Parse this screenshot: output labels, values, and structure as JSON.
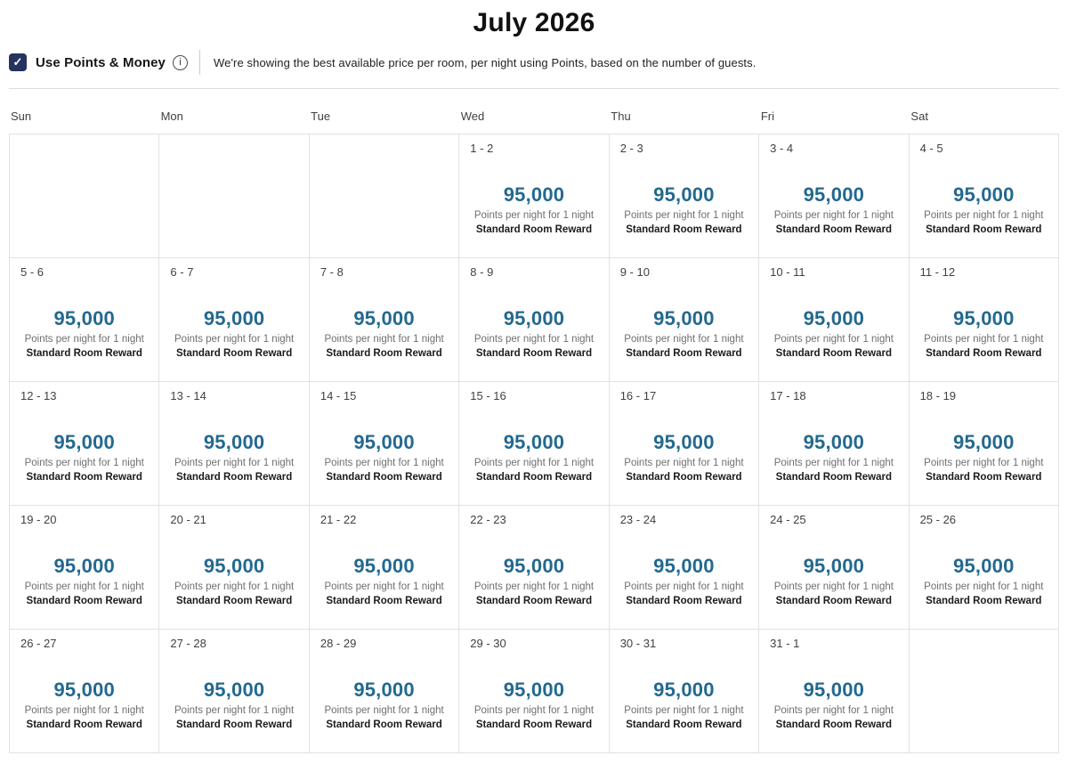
{
  "title": "July 2026",
  "filter_bar": {
    "checkbox_label": "Use Points & Money",
    "checkbox_checked": true,
    "description": "We're showing the best available price per room, per night using Points, based on the number of guests."
  },
  "icons": {
    "checkbox_check": "✓",
    "info": "i"
  },
  "calendar": {
    "day_headers": [
      "Sun",
      "Mon",
      "Tue",
      "Wed",
      "Thu",
      "Fri",
      "Sat"
    ],
    "cell_defaults": {
      "points": "95,000",
      "points_caption": "Points per night for 1 night",
      "room_label": "Standard Room Reward"
    },
    "weeks": [
      [
        null,
        null,
        null,
        "1 - 2",
        "2 - 3",
        "3 - 4",
        "4 - 5"
      ],
      [
        "5 - 6",
        "6 - 7",
        "7 - 8",
        "8 - 9",
        "9 - 10",
        "10 - 11",
        "11 - 12"
      ],
      [
        "12 - 13",
        "13 - 14",
        "14 - 15",
        "15 - 16",
        "16 - 17",
        "17 - 18",
        "18 - 19"
      ],
      [
        "19 - 20",
        "20 - 21",
        "21 - 22",
        "22 - 23",
        "23 - 24",
        "24 - 25",
        "25 - 26"
      ],
      [
        "26 - 27",
        "27 - 28",
        "28 - 29",
        "29 - 30",
        "30 - 31",
        "31 - 1",
        null
      ]
    ]
  },
  "colors": {
    "points_text": "#23698F",
    "checkbox_bg": "#26335F",
    "grid_border": "#E2E2E2"
  }
}
